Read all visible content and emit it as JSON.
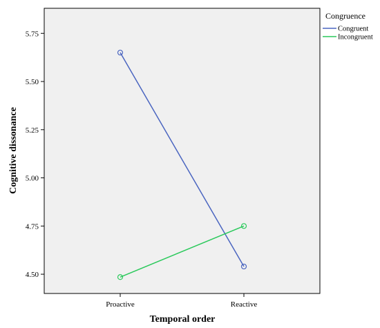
{
  "chart_data": {
    "type": "line",
    "xlabel": "Temporal order",
    "ylabel": "Cognitive dissonance",
    "categories": [
      "Proactive",
      "Reactive"
    ],
    "ylim": [
      4.4,
      5.88
    ],
    "yticks": [
      4.5,
      4.75,
      5.0,
      5.25,
      5.5,
      5.75
    ],
    "ytick_labels": [
      "4.50",
      "4.75",
      "5.00",
      "5.25",
      "5.50",
      "5.75"
    ],
    "legend": {
      "title": "Congruence",
      "placement": "right"
    },
    "background": "#f0f0f0",
    "grid": false,
    "series": [
      {
        "name": "Congruent",
        "values": [
          5.65,
          4.54
        ],
        "color": "#4a65c0"
      },
      {
        "name": "Incongruent",
        "values": [
          4.485,
          4.75
        ],
        "color": "#2ac95b"
      }
    ]
  }
}
